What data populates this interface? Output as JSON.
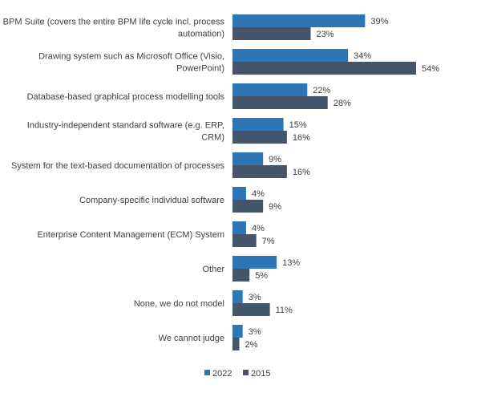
{
  "chart_data": {
    "type": "bar",
    "orientation": "horizontal",
    "categories": [
      "BPM Suite (covers the entire BPM life cycle incl. process automation)",
      "Drawing system such as Microsoft Office (Visio, PowerPoint)",
      "Database-based graphical process modelling tools",
      "Industry-independent standard software (e.g. ERP, CRM)",
      "System for the text-based documentation of processes",
      "Company-specific individual software",
      "Enterprise Content Management (ECM) System",
      "Other",
      "None, we do not model",
      "We cannot judge"
    ],
    "category_lines": [
      [
        "BPM Suite (covers the entire BPM life cycle incl. process",
        "automation)"
      ],
      [
        "Drawing system such as Microsoft Office (Visio,",
        "PowerPoint)"
      ],
      [
        "Database-based graphical process modelling tools"
      ],
      [
        "Industry-independent standard software (e.g. ERP,",
        "CRM)"
      ],
      [
        "System for the text-based documentation of processes"
      ],
      [
        "Company-specific individual software"
      ],
      [
        "Enterprise Content Management (ECM) System"
      ],
      [
        "Other"
      ],
      [
        "None, we do not model"
      ],
      [
        "We cannot judge"
      ]
    ],
    "series": [
      {
        "name": "2022",
        "color": "#2E75B6",
        "values": [
          39,
          34,
          22,
          15,
          9,
          4,
          4,
          13,
          3,
          3
        ]
      },
      {
        "name": "2015",
        "color": "#44546A",
        "values": [
          23,
          54,
          28,
          16,
          16,
          9,
          7,
          5,
          11,
          2
        ]
      }
    ],
    "value_suffix": "%",
    "xlim": [
      0,
      54
    ],
    "grid": false,
    "legend": "bottom"
  }
}
